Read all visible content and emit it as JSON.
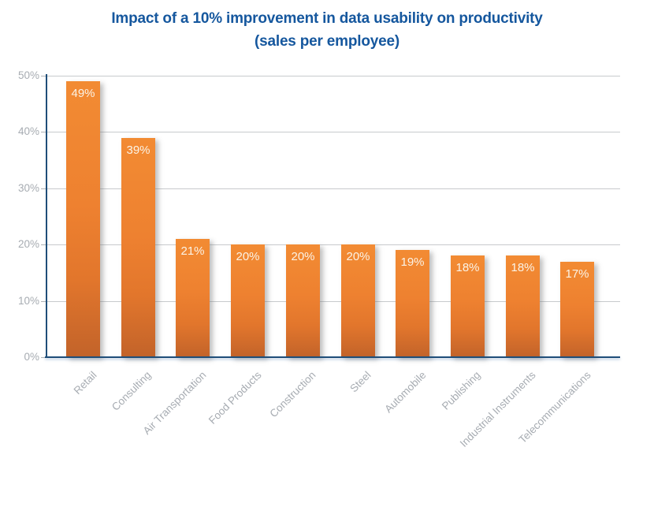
{
  "chart_data": {
    "type": "bar",
    "title": "Impact of a 10% improvement in data usability on productivity",
    "subtitle": "(sales per employee)",
    "categories": [
      "Retail",
      "Consulting",
      "Air Transportation",
      "Food Products",
      "Construction",
      "Steel",
      "Automobile",
      "Publishing",
      "Industrial Instruments",
      "Telecommunications"
    ],
    "values": [
      49,
      39,
      21,
      20,
      20,
      20,
      19,
      18,
      18,
      17
    ],
    "value_labels": [
      "49%",
      "39%",
      "21%",
      "20%",
      "20%",
      "20%",
      "19%",
      "18%",
      "18%",
      "17%"
    ],
    "xlabel": "",
    "ylabel": "",
    "ylim": [
      0,
      50
    ],
    "yticks": [
      0,
      10,
      20,
      30,
      40,
      50
    ],
    "ytick_labels": [
      "0%",
      "10%",
      "20%",
      "30%",
      "40%",
      "50%"
    ],
    "grid": true,
    "legend": false,
    "colors": {
      "title": "#15579E",
      "bar_gradient_top": "#F28B33",
      "bar_gradient_mid": "#EE8130",
      "bar_gradient_bottom": "#C2632A",
      "value_label": "#FBF3E6",
      "axis_line": "#1F4E79",
      "gridline": "#C7CACD",
      "tick_label": "#A7ACB2"
    }
  }
}
